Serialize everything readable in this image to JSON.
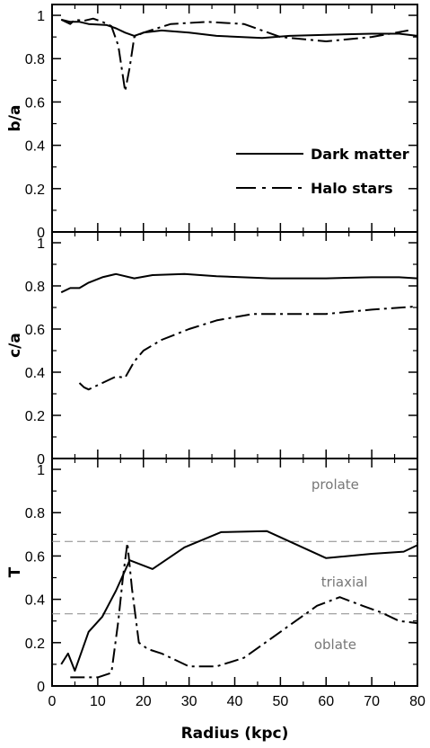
{
  "chart_data": {
    "type": "line",
    "x_label": "Radius (kpc)",
    "xlim": [
      0,
      80
    ],
    "x_ticks": [
      "0",
      "10",
      "20",
      "30",
      "40",
      "50",
      "60",
      "70",
      "80"
    ],
    "legend": {
      "placement": "right-middle of top panel",
      "entries": [
        {
          "label": "Dark matter",
          "style": "solid"
        },
        {
          "label": "Halo stars",
          "style": "dash-dot"
        }
      ]
    },
    "panels": [
      {
        "ylabel": "b/a",
        "ylim": [
          0,
          1.05
        ],
        "y_ticks": [
          "0",
          "0.2",
          "0.4",
          "0.6",
          "0.8",
          "1"
        ],
        "series": [
          {
            "name": "Dark matter",
            "style": "solid",
            "x": [
              2,
              4,
              6,
              8,
              12,
              14,
              16,
              18,
              20,
              24,
              30,
              36,
              46,
              52,
              60,
              70,
              76,
              80
            ],
            "y": [
              0.98,
              0.97,
              0.97,
              0.96,
              0.955,
              0.94,
              0.92,
              0.905,
              0.92,
              0.93,
              0.92,
              0.905,
              0.895,
              0.905,
              0.91,
              0.915,
              0.915,
              0.905
            ]
          },
          {
            "name": "Halo stars",
            "style": "dash-dot",
            "x": [
              2,
              4,
              5,
              7,
              9,
              11,
              13,
              14.5,
              16,
              17,
              18,
              20,
              26,
              34,
              42,
              50,
              60,
              70,
              78
            ],
            "y": [
              0.98,
              0.96,
              0.98,
              0.975,
              0.985,
              0.97,
              0.95,
              0.86,
              0.65,
              0.76,
              0.9,
              0.92,
              0.96,
              0.97,
              0.96,
              0.9,
              0.88,
              0.9,
              0.93
            ]
          }
        ],
        "annotations": []
      },
      {
        "ylabel": "c/a",
        "ylim": [
          0,
          1.05
        ],
        "y_ticks": [
          "0",
          "0.2",
          "0.4",
          "0.6",
          "0.8",
          "1"
        ],
        "series": [
          {
            "name": "Dark matter",
            "style": "solid",
            "x": [
              2,
              4,
              6,
              8,
              11,
              14,
              18,
              22,
              29,
              36,
              48,
              60,
              70,
              76,
              80
            ],
            "y": [
              0.77,
              0.79,
              0.79,
              0.815,
              0.84,
              0.855,
              0.835,
              0.85,
              0.855,
              0.845,
              0.835,
              0.835,
              0.84,
              0.84,
              0.835
            ]
          },
          {
            "name": "Halo stars",
            "style": "dash-dot",
            "x": [
              6,
              7,
              8,
              10,
              12,
              14,
              16,
              18,
              20,
              24,
              30,
              36,
              44,
              52,
              60,
              70,
              80
            ],
            "y": [
              0.35,
              0.33,
              0.32,
              0.34,
              0.36,
              0.38,
              0.375,
              0.45,
              0.5,
              0.55,
              0.6,
              0.64,
              0.67,
              0.67,
              0.67,
              0.69,
              0.705
            ]
          }
        ],
        "annotations": []
      },
      {
        "ylabel": "T",
        "ylim": [
          0,
          1.05
        ],
        "y_ticks": [
          "0",
          "0.2",
          "0.4",
          "0.6",
          "0.8",
          "1"
        ],
        "reference_lines": [
          0.667,
          0.333
        ],
        "series": [
          {
            "name": "Dark matter",
            "style": "solid",
            "x": [
              2,
              3.5,
              5,
              8,
              11,
              14,
              17,
              22,
              29,
              37,
              47,
              60,
              70,
              77,
              80
            ],
            "y": [
              0.1,
              0.15,
              0.07,
              0.25,
              0.32,
              0.44,
              0.58,
              0.54,
              0.64,
              0.71,
              0.715,
              0.59,
              0.61,
              0.62,
              0.65
            ]
          },
          {
            "name": "Halo stars",
            "style": "dash-dot",
            "x": [
              4,
              7,
              10,
              13,
              14.5,
              15.5,
              16.5,
              17.5,
              19,
              21,
              24,
              30,
              36,
              42,
              50,
              58,
              63,
              68,
              72,
              76,
              80
            ],
            "y": [
              0.04,
              0.04,
              0.04,
              0.06,
              0.3,
              0.5,
              0.66,
              0.45,
              0.2,
              0.17,
              0.15,
              0.09,
              0.09,
              0.13,
              0.25,
              0.37,
              0.41,
              0.37,
              0.34,
              0.3,
              0.29
            ]
          }
        ],
        "annotations": [
          {
            "text": "prolate",
            "x": 62,
            "y": 0.93
          },
          {
            "text": "triaxial",
            "x": 64,
            "y": 0.48
          },
          {
            "text": "oblate",
            "x": 62,
            "y": 0.19
          }
        ]
      }
    ]
  }
}
